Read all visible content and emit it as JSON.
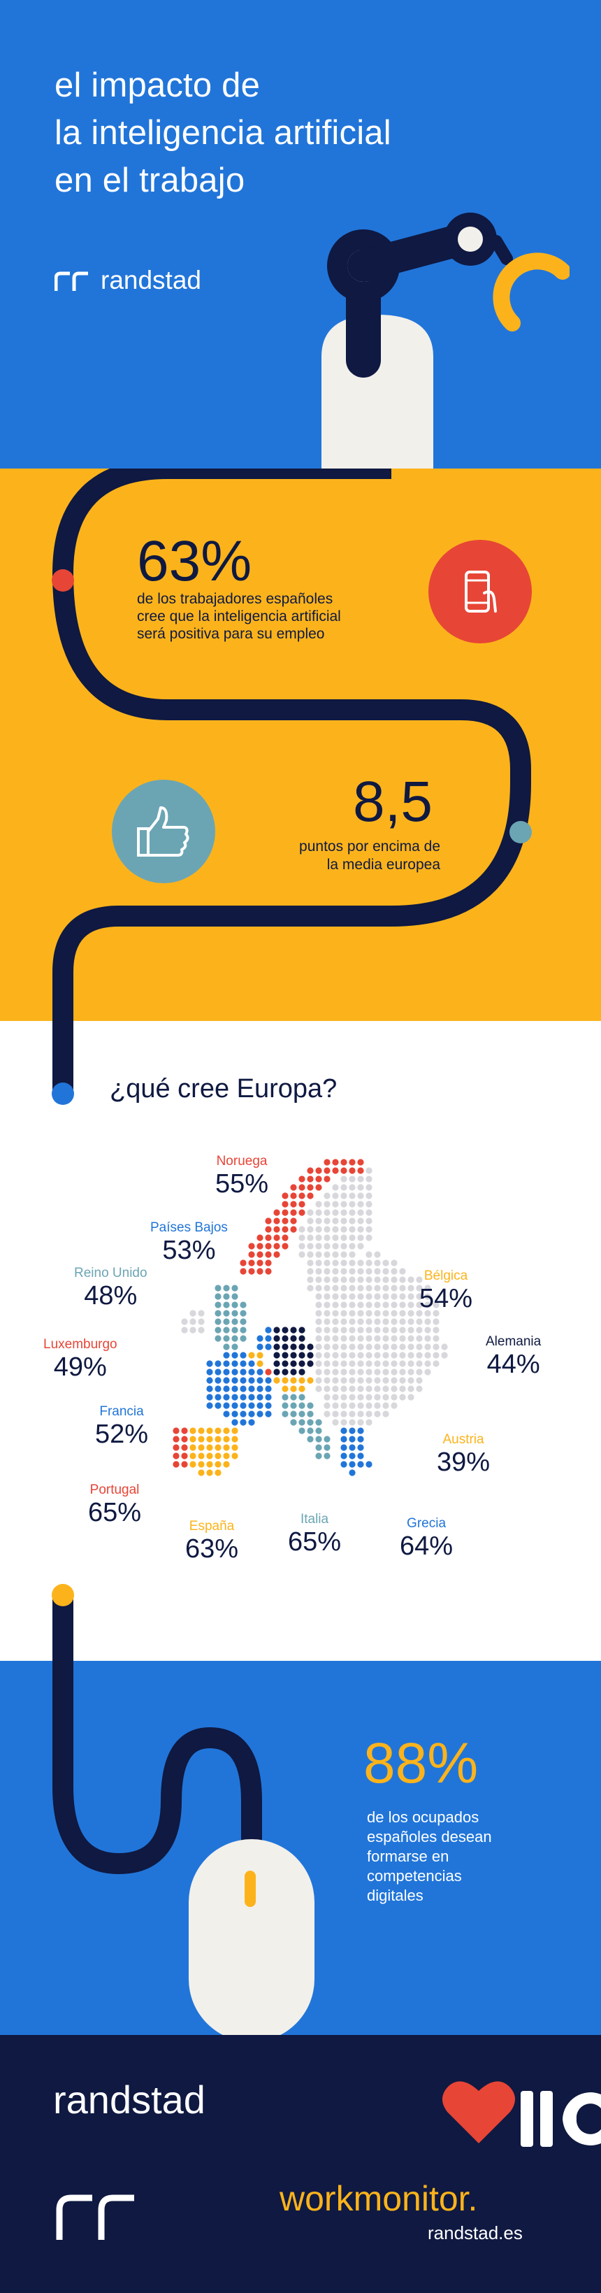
{
  "colors": {
    "blue": "#2175d9",
    "yellow": "#fcb31b",
    "navy": "#0f1941",
    "red": "#e74536",
    "teal": "#6ba5b4",
    "lightgrey": "#d7d7dc"
  },
  "header": {
    "title_lines": [
      "el impacto de",
      "la inteligencia artificial",
      "en el trabajo"
    ],
    "brand": "randstad"
  },
  "stat1": {
    "value": "63%",
    "caption": [
      "de los trabajadores españoles",
      "cree que la inteligencia artificial",
      "será positiva para su empleo"
    ],
    "icon": "smartphone-hand-icon"
  },
  "stat2": {
    "value": "8,5",
    "caption": [
      "puntos por encima de",
      "la media europea"
    ],
    "icon": "thumbs-up-icon"
  },
  "europe": {
    "heading": "¿qué cree Europa?",
    "countries": [
      {
        "key": "noruega",
        "name": "Noruega",
        "pct": "55%",
        "color": "#e74536"
      },
      {
        "key": "paises-bajos",
        "name": "Países Bajos",
        "pct": "53%",
        "color": "#2175d9"
      },
      {
        "key": "reino-unido",
        "name": "Reino Unido",
        "pct": "48%",
        "color": "#6ba5b4"
      },
      {
        "key": "luxemburgo",
        "name": "Luxemburgo",
        "pct": "49%",
        "color": "#e74536"
      },
      {
        "key": "francia",
        "name": "Francia",
        "pct": "52%",
        "color": "#2175d9"
      },
      {
        "key": "portugal",
        "name": "Portugal",
        "pct": "65%",
        "color": "#e74536"
      },
      {
        "key": "espana",
        "name": "España",
        "pct": "63%",
        "color": "#fcb31b"
      },
      {
        "key": "italia",
        "name": "Italia",
        "pct": "65%",
        "color": "#6ba5b4"
      },
      {
        "key": "grecia",
        "name": "Grecia",
        "pct": "64%",
        "color": "#2175d9"
      },
      {
        "key": "austria",
        "name": "Austria",
        "pct": "39%",
        "color": "#fcb31b"
      },
      {
        "key": "alemania",
        "name": "Alemania",
        "pct": "44%",
        "color": "#0f1941"
      },
      {
        "key": "belgica",
        "name": "Bélgica",
        "pct": "54%",
        "color": "#fcb31b"
      }
    ]
  },
  "stat3": {
    "value": "88%",
    "caption": [
      "de los ocupados",
      "españoles desean",
      "formarse en",
      "competencias",
      "digitales"
    ],
    "icon": "computer-mouse-icon"
  },
  "footer": {
    "brand": "randstad",
    "program": "workmonitor.",
    "site": "randstad.es"
  }
}
